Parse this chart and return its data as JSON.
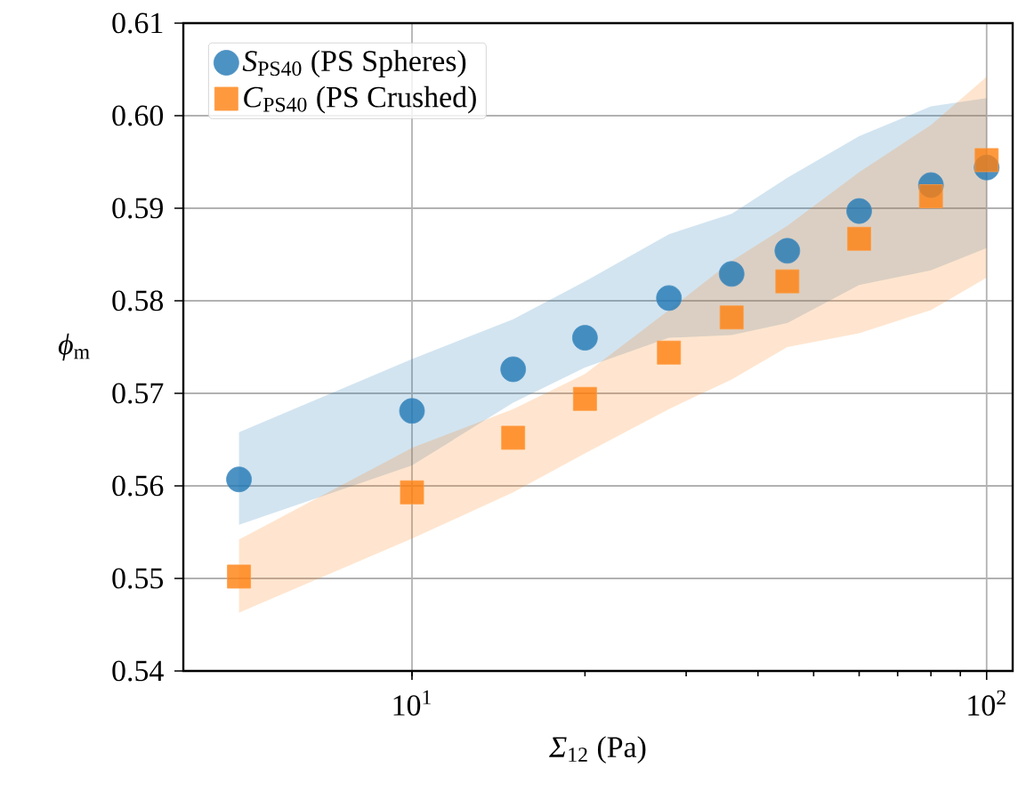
{
  "chart_data": {
    "type": "scatter",
    "xlabel": "*Σ*$_{12}$ (Pa)",
    "ylabel": "*ϕ*$_{m}$",
    "log": "x",
    "grid": true,
    "legend": "top left",
    "x": [
      5,
      10,
      15,
      20,
      28,
      36,
      45,
      60,
      80,
      100
    ],
    "xlim": [
      4,
      111
    ],
    "xticks": [
      {
        "value": 10,
        "label": "10$^{1}$"
      },
      {
        "value": 100,
        "label": "10$^{2}$"
      }
    ],
    "ylim": [
      0.54,
      0.61
    ],
    "yticks": [
      0.54,
      0.55,
      0.56,
      0.57,
      0.58,
      0.59,
      {
        "value": 0.6,
        "label": "0.60"
      },
      0.61
    ],
    "series": [
      {
        "name": "*S*$_{PS40}$ (PS Spheres)",
        "color": "#1f77b4",
        "marker": "circle",
        "values": [
          0.5607,
          0.5681,
          0.5726,
          0.576,
          0.5803,
          0.5829,
          0.5854,
          0.5897,
          0.5925,
          0.5944
        ],
        "lower": [
          0.5558,
          0.5622,
          0.569,
          0.5728,
          0.576,
          0.5763,
          0.5776,
          0.5817,
          0.5833,
          0.5857
        ],
        "upper": [
          0.5658,
          0.5737,
          0.578,
          0.5821,
          0.5872,
          0.5894,
          0.5933,
          0.5978,
          0.601,
          0.6019
        ]
      },
      {
        "name": "*C*$_{PS40}$ (PS Crushed)",
        "color": "#ff7f0e",
        "marker": "square",
        "values": [
          0.5502,
          0.5593,
          0.5652,
          0.5694,
          0.5744,
          0.5782,
          0.5821,
          0.5867,
          0.5913,
          0.5952
        ],
        "lower": [
          0.5463,
          0.5543,
          0.5593,
          0.5635,
          0.5683,
          0.5715,
          0.575,
          0.5765,
          0.579,
          0.5825
        ],
        "upper": [
          0.5542,
          0.5641,
          0.5683,
          0.5721,
          0.579,
          0.5843,
          0.5881,
          0.5939,
          0.599,
          0.6042
        ]
      }
    ]
  }
}
